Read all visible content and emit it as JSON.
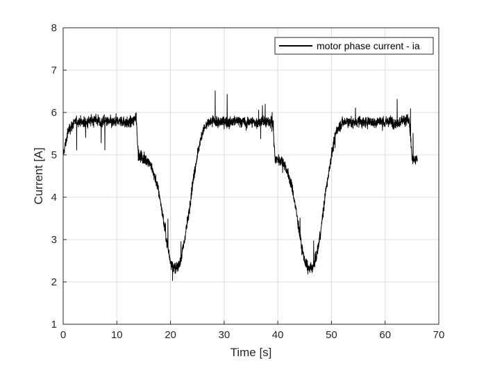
{
  "chart_data": {
    "type": "line",
    "title": "",
    "xlabel": "Time [s]",
    "ylabel": "Current [A]",
    "xlim": [
      0,
      70
    ],
    "ylim": [
      1,
      8
    ],
    "xticks": [
      0,
      10,
      20,
      30,
      40,
      50,
      60,
      70
    ],
    "yticks": [
      1,
      2,
      3,
      4,
      5,
      6,
      7,
      8
    ],
    "grid": true,
    "legend": "top-right",
    "series": [
      {
        "name": "motor phase current - ia",
        "color": "#000000",
        "x": [
          0,
          0.5,
          1,
          2,
          3,
          4,
          5,
          6,
          7,
          8,
          9,
          10,
          11,
          12,
          13,
          13.6,
          14,
          14.5,
          15,
          16,
          16.5,
          17,
          17.5,
          18,
          18.5,
          19,
          19.5,
          20,
          20.5,
          21,
          21.5,
          22,
          22.5,
          23,
          23.5,
          24,
          24.5,
          25,
          25.5,
          26,
          27,
          28,
          29,
          30,
          31,
          32,
          33,
          34,
          35,
          36,
          37,
          38,
          39,
          39.5,
          40,
          41,
          41.5,
          42,
          42.5,
          43,
          43.5,
          44,
          44.5,
          45,
          45.5,
          46,
          46.5,
          47,
          47.5,
          48,
          48.5,
          49,
          49.5,
          50,
          50.5,
          51,
          52,
          53,
          54,
          55,
          56,
          57,
          58,
          59,
          60,
          61,
          62,
          63,
          64,
          64.5,
          65,
          65.5,
          66
        ],
        "y": [
          5.0,
          5.3,
          5.6,
          5.75,
          5.8,
          5.75,
          5.8,
          5.85,
          5.75,
          5.8,
          5.75,
          5.8,
          5.8,
          5.75,
          5.8,
          5.9,
          5.0,
          4.95,
          4.9,
          4.85,
          4.7,
          4.5,
          4.3,
          4.0,
          3.6,
          3.2,
          2.8,
          2.5,
          2.35,
          2.3,
          2.4,
          2.55,
          2.9,
          3.3,
          3.7,
          4.2,
          4.6,
          5.0,
          5.3,
          5.55,
          5.75,
          5.8,
          5.75,
          5.8,
          5.75,
          5.8,
          5.8,
          5.75,
          5.8,
          5.75,
          5.8,
          5.75,
          5.85,
          4.9,
          4.9,
          4.85,
          4.7,
          4.5,
          4.3,
          4.0,
          3.6,
          3.2,
          2.8,
          2.5,
          2.35,
          2.3,
          2.35,
          2.5,
          2.8,
          3.2,
          3.7,
          4.2,
          4.6,
          5.0,
          5.3,
          5.6,
          5.75,
          5.8,
          5.75,
          5.8,
          5.75,
          5.8,
          5.75,
          5.8,
          5.75,
          5.8,
          5.75,
          5.8,
          5.85,
          5.8,
          4.9,
          4.85,
          4.9
        ]
      }
    ]
  }
}
